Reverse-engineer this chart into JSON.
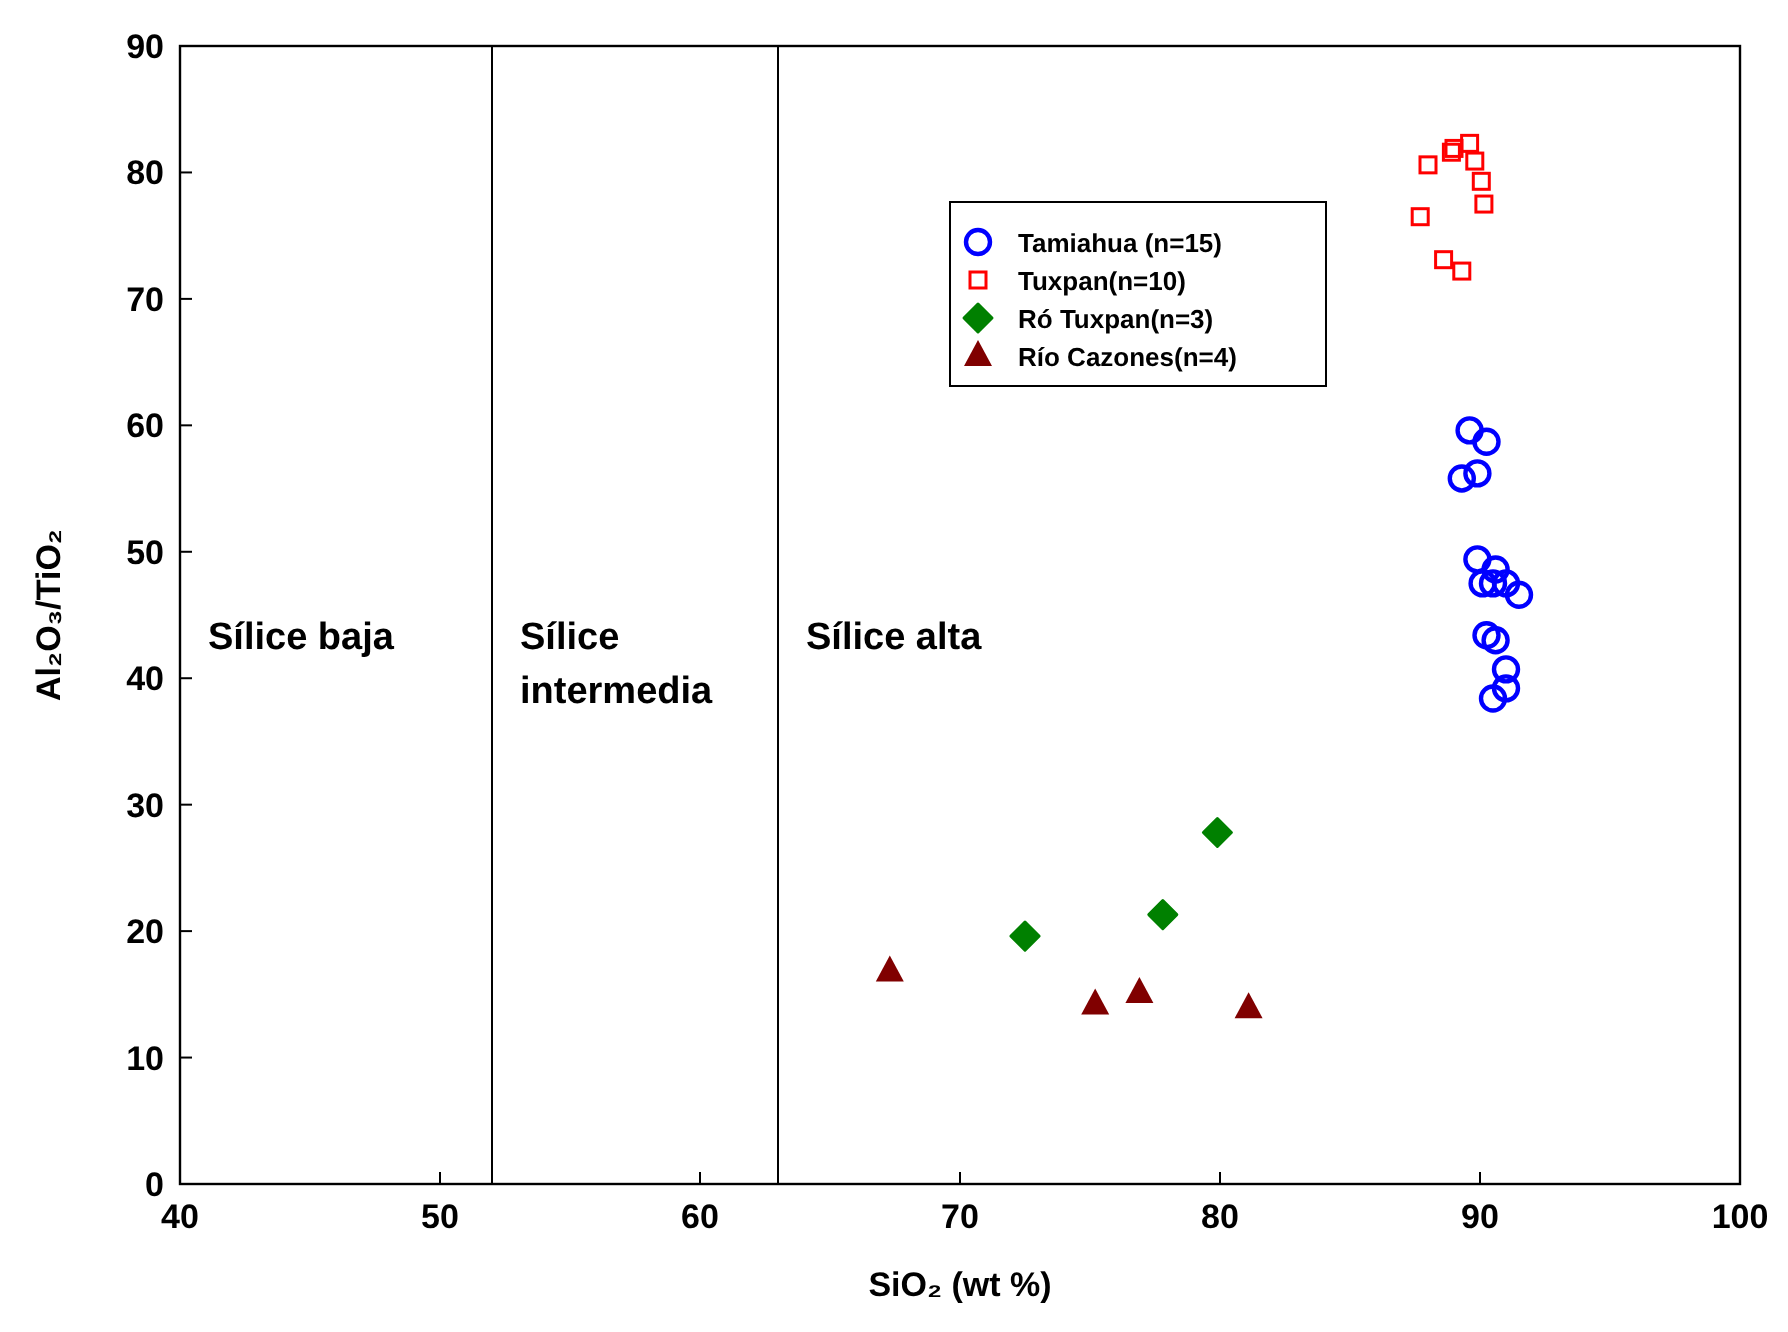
{
  "chart_data": {
    "type": "scatter",
    "xlabel": "SiO₂ (wt %)",
    "ylabel": "Al₂O₃/TiO₂",
    "xlim": [
      40,
      100
    ],
    "xticks": [
      40,
      50,
      60,
      70,
      80,
      90,
      100
    ],
    "ylim": [
      0,
      90
    ],
    "yticks": [
      0,
      10,
      20,
      30,
      40,
      50,
      60,
      70,
      80,
      90
    ],
    "grid": false,
    "legend": "top",
    "ref_lines": [
      {
        "axis": "x",
        "value": 52,
        "color": "#000000"
      },
      {
        "axis": "x",
        "value": 63,
        "color": "#000000"
      }
    ],
    "annotations": [
      "Sílice baja",
      "Sílice intermedia",
      "Sílice alta"
    ],
    "series": [
      {
        "name": "Tamiahua (n=15)",
        "color": "#0000ff",
        "marker": "circle",
        "x": [
          89.6,
          90.25,
          89.3,
          89.9,
          89.9,
          90.6,
          90.1,
          90.5,
          91.0,
          91.5,
          90.25,
          90.6,
          91.0,
          91.0,
          90.5
        ],
        "values": [
          59.6,
          58.7,
          55.8,
          56.2,
          49.4,
          48.6,
          47.5,
          47.5,
          47.5,
          46.6,
          43.4,
          43.0,
          40.7,
          39.2,
          38.4
        ]
      },
      {
        "name": "Tuxpan(n=10)",
        "color": "#ff0000",
        "marker": "square",
        "x": [
          88.0,
          89.0,
          88.9,
          89.6,
          89.8,
          90.05,
          90.15,
          87.7,
          88.6,
          89.3
        ],
        "values": [
          80.6,
          81.9,
          81.6,
          82.3,
          80.9,
          79.3,
          77.5,
          76.5,
          73.1,
          72.2
        ]
      },
      {
        "name": "Ró Tuxpan(n=3)",
        "color": "#008000",
        "marker": "diamond",
        "x": [
          72.5,
          77.8,
          79.9
        ],
        "values": [
          19.6,
          21.3,
          27.8
        ]
      },
      {
        "name": "Río Cazones(n=4)",
        "color": "#800000",
        "marker": "triangle",
        "x": [
          67.3,
          75.2,
          76.9,
          81.1
        ],
        "values": [
          16.8,
          14.2,
          15.1,
          13.9
        ]
      }
    ]
  }
}
